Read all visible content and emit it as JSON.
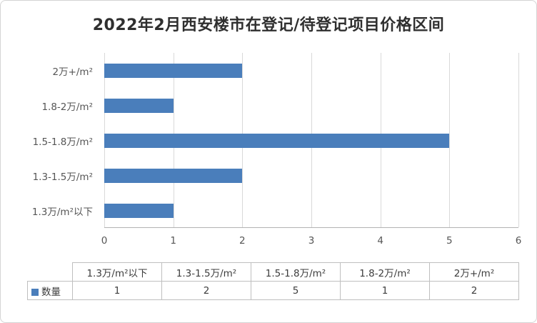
{
  "chart_data": {
    "type": "bar",
    "orientation": "horizontal",
    "title": "2022年2月西安楼市在登记/待登记项目价格区间",
    "categories": [
      "1.3万/m²以下",
      "1.3-1.5万/m²",
      "1.5-1.8万/m²",
      "1.8-2万/m²",
      "2万+/m²"
    ],
    "series": [
      {
        "name": "数量",
        "values": [
          1,
          2,
          5,
          1,
          2
        ]
      }
    ],
    "xlim": [
      0,
      6
    ],
    "x_ticks": [
      0,
      1,
      2,
      3,
      4,
      5,
      6
    ],
    "grid": true,
    "data_table_shown": true,
    "legend_position": "data-table-left"
  },
  "colors": {
    "bar": "#4a7ebb"
  }
}
